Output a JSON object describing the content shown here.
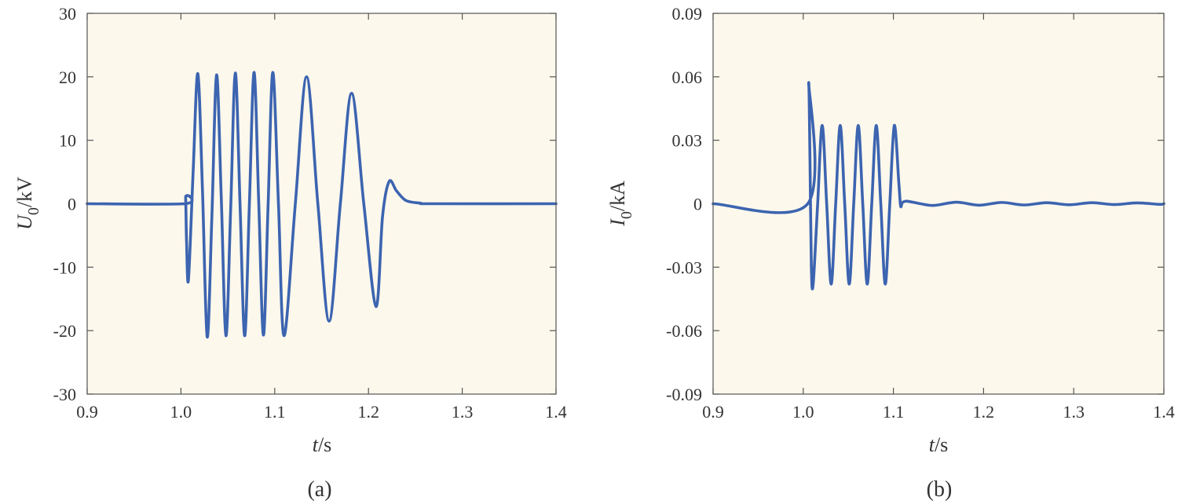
{
  "chart_data": [
    {
      "type": "line",
      "caption": "(a)",
      "ylabel_main": "U",
      "ylabel_sub": "0",
      "ylabel_unit": "/kV",
      "xlabel_main": "t",
      "xlabel_unit": "/s",
      "xlim": [
        0.9,
        1.4
      ],
      "ylim": [
        -30,
        30
      ],
      "x_ticks": [
        0.9,
        1.0,
        1.1,
        1.2,
        1.3,
        1.4
      ],
      "x_tick_labels": [
        "0.9",
        "1.0",
        "1.1",
        "1.2",
        "1.3",
        "1.4"
      ],
      "y_ticks": [
        30,
        20,
        10,
        0,
        -10,
        -20,
        -30
      ],
      "y_tick_labels": [
        "30",
        "20",
        "10",
        "0",
        "-10",
        "-20",
        "-30"
      ],
      "series": [
        {
          "color": "#3c64b0",
          "x": [
            0.9,
            1.004,
            1.005,
            1.006,
            1.008,
            1.013,
            1.018,
            1.023,
            1.028,
            1.033,
            1.038,
            1.043,
            1.048,
            1.053,
            1.058,
            1.063,
            1.068,
            1.073,
            1.078,
            1.083,
            1.088,
            1.093,
            1.098,
            1.104,
            1.11,
            1.122,
            1.134,
            1.146,
            1.158,
            1.17,
            1.182,
            1.195,
            1.208,
            1.215,
            1.222,
            1.23,
            1.24,
            1.255,
            1.27,
            1.4
          ],
          "y": [
            0,
            0,
            1,
            -6,
            -12,
            5,
            20.5,
            2,
            -21,
            -2,
            20.3,
            1,
            -20.8,
            -1,
            20.6,
            0,
            -20.8,
            0,
            20.7,
            0,
            -20.7,
            0,
            20.7,
            0,
            -20.8,
            0,
            20,
            0,
            -18.5,
            0,
            17.4,
            0,
            -16.2,
            -2,
            3.5,
            2,
            0.5,
            0.1,
            0,
            0
          ]
        }
      ]
    },
    {
      "type": "line",
      "caption": "(b)",
      "ylabel_main": "I",
      "ylabel_sub": "0",
      "ylabel_unit": "/kA",
      "xlabel_main": "t",
      "xlabel_unit": "/s",
      "xlim": [
        0.9,
        1.4
      ],
      "ylim": [
        -0.09,
        0.09
      ],
      "x_ticks": [
        0.9,
        1.0,
        1.1,
        1.2,
        1.3,
        1.4
      ],
      "x_tick_labels": [
        "0.9",
        "1.0",
        "1.1",
        "1.2",
        "1.3",
        "1.4"
      ],
      "y_ticks": [
        0.09,
        0.06,
        0.03,
        0,
        -0.03,
        -0.06,
        -0.09
      ],
      "y_tick_labels": [
        "0.09",
        "0.06",
        "0.03",
        "0",
        "-0.03",
        "-0.06",
        "-0.09"
      ],
      "series": [
        {
          "color": "#3c64b0",
          "x": [
            0.9,
            1.005,
            1.006,
            1.0075,
            1.009,
            1.011,
            1.016,
            1.021,
            1.026,
            1.031,
            1.036,
            1.041,
            1.046,
            1.051,
            1.056,
            1.061,
            1.066,
            1.071,
            1.076,
            1.081,
            1.086,
            1.091,
            1.096,
            1.101,
            1.106,
            1.108,
            1.11,
            1.115,
            1.13,
            1.145,
            1.17,
            1.195,
            1.22,
            1.245,
            1.27,
            1.295,
            1.32,
            1.345,
            1.37,
            1.395,
            1.4
          ],
          "y": [
            0,
            0,
            0.057,
            0.02,
            -0.03,
            -0.038,
            0,
            0.037,
            0,
            -0.038,
            0,
            0.037,
            0,
            -0.038,
            0,
            0.037,
            0,
            -0.038,
            0,
            0.037,
            0,
            -0.038,
            0,
            0.037,
            0.01,
            -0.001,
            0.0005,
            0.0012,
            0,
            -0.0008,
            0.0007,
            -0.0007,
            0.0006,
            -0.0006,
            0.0005,
            -0.0005,
            0.0005,
            -0.0004,
            0.0004,
            -0.0003,
            0
          ]
        }
      ]
    }
  ]
}
